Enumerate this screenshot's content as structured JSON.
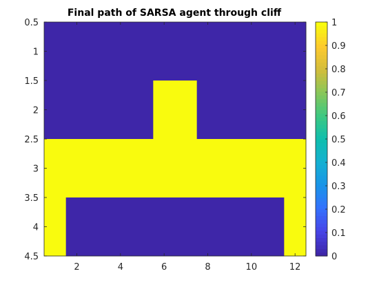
{
  "chart_data": {
    "type": "heatmap",
    "title": "Final path of SARSA agent through cliff",
    "x_ticks": [
      "2",
      "4",
      "6",
      "8",
      "10",
      "12"
    ],
    "y_ticks": [
      "0.5",
      "1",
      "1.5",
      "2",
      "2.5",
      "3",
      "3.5",
      "4",
      "4.5"
    ],
    "xlim": [
      0.5,
      12.5
    ],
    "ylim": [
      0.5,
      4.5
    ],
    "y_reversed": true,
    "colorbar": {
      "ticks": [
        "0",
        "0.1",
        "0.2",
        "0.3",
        "0.4",
        "0.5",
        "0.6",
        "0.7",
        "0.8",
        "0.9",
        "1"
      ],
      "range": [
        0,
        1
      ],
      "colormap": "parula"
    },
    "low_color": "#3E26A8",
    "high_color": "#F9FB0E",
    "grid": [
      [
        0,
        0,
        0,
        0,
        0,
        0,
        0,
        0,
        0,
        0,
        0,
        0
      ],
      [
        0,
        0,
        0,
        0,
        0,
        1,
        1,
        0,
        0,
        0,
        0,
        0
      ],
      [
        1,
        1,
        1,
        1,
        1,
        1,
        1,
        1,
        1,
        1,
        1,
        1
      ],
      [
        1,
        0,
        0,
        0,
        0,
        0,
        0,
        0,
        0,
        0,
        0,
        1
      ]
    ]
  }
}
